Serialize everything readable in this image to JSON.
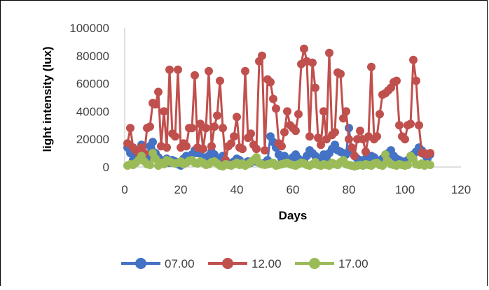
{
  "chart_data": {
    "type": "line",
    "title": "",
    "xlabel": "Days",
    "ylabel": "light intensity (lux)",
    "xlim": [
      0,
      120
    ],
    "ylim": [
      0,
      100000
    ],
    "xticks": [
      0,
      20,
      40,
      60,
      80,
      100,
      120
    ],
    "yticks": [
      0,
      20000,
      40000,
      60000,
      80000,
      100000
    ],
    "grid": false,
    "legend_position": "bottom",
    "series": [
      {
        "name": "07.00",
        "color": "#4472C4",
        "x": [
          1,
          2,
          3,
          4,
          5,
          6,
          7,
          8,
          9,
          10,
          11,
          12,
          13,
          14,
          15,
          16,
          17,
          18,
          19,
          20,
          21,
          22,
          23,
          24,
          25,
          26,
          27,
          28,
          29,
          30,
          31,
          32,
          33,
          34,
          35,
          36,
          37,
          38,
          39,
          40,
          41,
          42,
          43,
          44,
          45,
          46,
          47,
          48,
          49,
          50,
          51,
          52,
          53,
          54,
          55,
          56,
          57,
          58,
          59,
          60,
          61,
          62,
          63,
          64,
          65,
          66,
          67,
          68,
          69,
          70,
          71,
          72,
          73,
          74,
          75,
          76,
          77,
          78,
          79,
          80,
          81,
          82,
          83,
          84,
          85,
          86,
          87,
          88,
          89,
          90,
          91,
          92,
          93,
          94,
          95,
          96,
          97,
          98,
          99,
          100,
          101,
          102,
          103,
          104,
          105,
          106,
          107,
          108,
          109
        ],
        "y": [
          14000,
          10000,
          5000,
          8000,
          12000,
          16000,
          9000,
          6000,
          15000,
          18000,
          10000,
          7000,
          5000,
          4000,
          6000,
          3000,
          5000,
          4000,
          2000,
          1000,
          6000,
          8000,
          5000,
          9000,
          12000,
          10000,
          13000,
          7000,
          5000,
          8000,
          11000,
          9000,
          6000,
          4000,
          8000,
          5000,
          3000,
          2000,
          4000,
          6000,
          5000,
          3000,
          2000,
          4000,
          3000,
          5000,
          4000,
          3000,
          2000,
          3000,
          5000,
          22000,
          18000,
          14000,
          9000,
          6000,
          8000,
          5000,
          4000,
          7000,
          9000,
          6000,
          3000,
          5000,
          8000,
          12000,
          10000,
          8000,
          6000,
          5000,
          9000,
          7000,
          10000,
          13000,
          16000,
          12000,
          11000,
          10000,
          9000,
          28000,
          12000,
          8000,
          6000,
          5000,
          4000,
          6000,
          4000,
          8000,
          7000,
          5000,
          4000,
          6000,
          8000,
          10000,
          12000,
          8000,
          6000,
          5000,
          4000,
          3000,
          5000,
          7000,
          9000,
          11000,
          14000,
          12000,
          9000,
          6000,
          9000
        ]
      },
      {
        "name": "12.00",
        "color": "#C0504D",
        "x": [
          1,
          2,
          3,
          4,
          5,
          6,
          7,
          8,
          9,
          10,
          11,
          12,
          13,
          14,
          15,
          16,
          17,
          18,
          19,
          20,
          21,
          22,
          23,
          24,
          25,
          26,
          27,
          28,
          29,
          30,
          31,
          32,
          33,
          34,
          35,
          36,
          37,
          38,
          39,
          40,
          41,
          42,
          43,
          44,
          45,
          46,
          47,
          48,
          49,
          50,
          51,
          52,
          53,
          54,
          55,
          56,
          57,
          58,
          59,
          60,
          61,
          62,
          63,
          64,
          65,
          66,
          67,
          68,
          69,
          70,
          71,
          72,
          73,
          74,
          75,
          76,
          77,
          78,
          79,
          80,
          81,
          82,
          83,
          84,
          85,
          86,
          87,
          88,
          89,
          90,
          91,
          92,
          93,
          94,
          95,
          96,
          97,
          98,
          99,
          100,
          101,
          102,
          103,
          104,
          105,
          106,
          107,
          108,
          109
        ],
        "y": [
          17000,
          28000,
          14000,
          12000,
          10000,
          14000,
          10000,
          28000,
          29000,
          46000,
          45000,
          54000,
          15000,
          40000,
          14000,
          70000,
          24000,
          22000,
          70000,
          14000,
          17000,
          15000,
          28000,
          28000,
          66000,
          14000,
          31000,
          13000,
          28000,
          69000,
          15000,
          29000,
          37000,
          62000,
          28000,
          5000,
          15000,
          17000,
          22000,
          36000,
          14000,
          13000,
          69000,
          21000,
          24000,
          16000,
          13000,
          76000,
          80000,
          12000,
          63000,
          61000,
          49000,
          42000,
          17000,
          15000,
          25000,
          40000,
          30000,
          28000,
          26000,
          38000,
          74000,
          85000,
          76000,
          22000,
          75000,
          57000,
          21000,
          16000,
          40000,
          20000,
          82000,
          23000,
          25000,
          68000,
          67000,
          35000,
          40000,
          20000,
          14000,
          8000,
          20000,
          26000,
          20000,
          11000,
          22000,
          72000,
          20000,
          22000,
          38000,
          52000,
          53000,
          55000,
          57000,
          61000,
          62000,
          30000,
          22000,
          20000,
          30000,
          31000,
          77000,
          62000,
          30000,
          10000,
          10000,
          9000,
          10000
        ]
      },
      {
        "name": "17.00",
        "color": "#9BBB59",
        "x": [
          1,
          2,
          3,
          4,
          5,
          6,
          7,
          8,
          9,
          10,
          11,
          12,
          13,
          14,
          15,
          16,
          17,
          18,
          19,
          20,
          21,
          22,
          23,
          24,
          25,
          26,
          27,
          28,
          29,
          30,
          31,
          32,
          33,
          34,
          35,
          36,
          37,
          38,
          39,
          40,
          41,
          42,
          43,
          44,
          45,
          46,
          47,
          48,
          49,
          50,
          51,
          52,
          53,
          54,
          55,
          56,
          57,
          58,
          59,
          60,
          61,
          62,
          63,
          64,
          65,
          66,
          67,
          68,
          69,
          70,
          71,
          72,
          73,
          74,
          75,
          76,
          77,
          78,
          79,
          80,
          81,
          82,
          83,
          84,
          85,
          86,
          87,
          88,
          89,
          90,
          91,
          92,
          93,
          94,
          95,
          96,
          97,
          98,
          99,
          100,
          101,
          102,
          103,
          104,
          105,
          106,
          107,
          108,
          109
        ],
        "y": [
          1000,
          2000,
          1500,
          3000,
          5000,
          8000,
          4000,
          2000,
          1500,
          10000,
          6000,
          1000,
          3000,
          2000,
          5000,
          4000,
          3000,
          2500,
          3000,
          4000,
          2000,
          3000,
          4500,
          5000,
          3000,
          2500,
          4000,
          3000,
          1500,
          2000,
          3500,
          4000,
          2500,
          1000,
          500,
          2000,
          1500,
          1000,
          2000,
          3000,
          1500,
          2500,
          1000,
          2000,
          3500,
          5000,
          7000,
          3000,
          2000,
          1500,
          2000,
          2500,
          3000,
          1000,
          1500,
          2000,
          2500,
          3000,
          2000,
          1500,
          1000,
          2000,
          3000,
          2500,
          1500,
          1000,
          2000,
          3500,
          1500,
          1000,
          2000,
          1500,
          1000,
          3000,
          2000,
          1500,
          3500,
          5000,
          2000,
          1500,
          1000,
          500,
          1000,
          1500,
          1000,
          2000,
          1500,
          1000,
          2500,
          3000,
          1500,
          1000,
          9000,
          4000,
          2000,
          1500,
          1000,
          2000,
          1500,
          1000,
          1500,
          8000,
          6000,
          2000,
          1500,
          2500,
          1000,
          2000,
          1500
        ]
      }
    ]
  }
}
